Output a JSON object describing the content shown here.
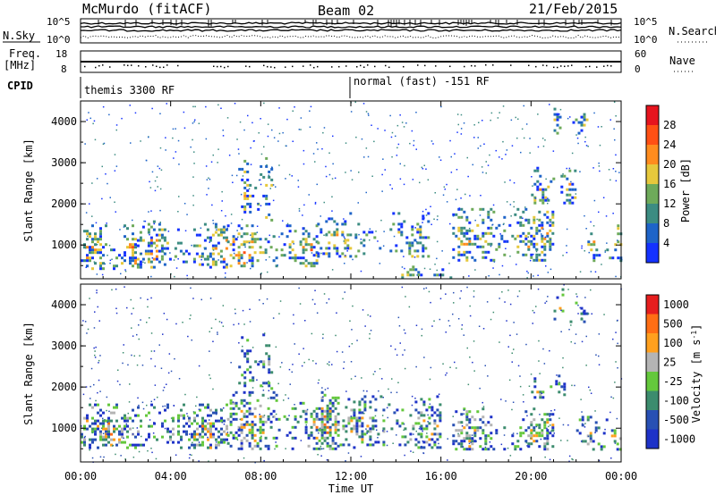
{
  "header": {
    "station": "McMurdo (fitACF)",
    "beam": "Beam 02",
    "date": "21/Feb/2015"
  },
  "top_panels": {
    "nsky_label": "N.Sky",
    "nsearch_label": "N.Search",
    "freq_label_1": "Freq.",
    "freq_label_2": "[MHz]",
    "nave_label": "Nave",
    "cpid_label": "CPID",
    "noise_ticks_left": [
      "10^5",
      "10^0"
    ],
    "noise_ticks_right": [
      "10^5",
      "10^0"
    ],
    "freq_ticks": [
      "18",
      "8"
    ],
    "nave_ticks": [
      "60",
      "0"
    ],
    "cpid_segments": [
      {
        "name": "themis 3300 RF",
        "start_hour": 0,
        "end_hour": 12
      },
      {
        "name": "normal (fast) -151 RF",
        "start_hour": 12,
        "end_hour": 24
      }
    ]
  },
  "chart_data": [
    {
      "type": "heatmap",
      "title": "",
      "ylabel": "Slant Range [km]",
      "xlabel": "",
      "xlim": [
        0,
        24
      ],
      "ylim": [
        180,
        4500
      ],
      "yticks": [
        "1000",
        "2000",
        "3000",
        "4000"
      ],
      "colorbar": {
        "label": "Power [dB]",
        "range": [
          0,
          32
        ],
        "ticks": [
          "4",
          "8",
          "12",
          "16",
          "20",
          "24",
          "28"
        ],
        "colors": [
          "#1432ff",
          "#1e64c8",
          "#3c8c82",
          "#6eaa5a",
          "#e6c83c",
          "#ff8c1e",
          "#ff5014",
          "#e6141e"
        ]
      },
      "clusters": [
        {
          "start_hour": 0.0,
          "end_hour": 2.5,
          "range_lo": 400,
          "range_hi": 1500,
          "level": 0.55
        },
        {
          "start_hour": 2.5,
          "end_hour": 6.5,
          "range_lo": 450,
          "range_hi": 1600,
          "level": 0.5
        },
        {
          "start_hour": 6.5,
          "end_hour": 10.5,
          "range_lo": 500,
          "range_hi": 1500,
          "level": 0.55
        },
        {
          "start_hour": 7.0,
          "end_hour": 8.5,
          "range_lo": 1600,
          "range_hi": 3200,
          "level": 0.35
        },
        {
          "start_hour": 10.5,
          "end_hour": 15.5,
          "range_lo": 700,
          "range_hi": 1800,
          "level": 0.35
        },
        {
          "start_hour": 14.0,
          "end_hour": 16.5,
          "range_lo": 200,
          "range_hi": 500,
          "level": 0.3
        },
        {
          "start_hour": 16.5,
          "end_hour": 21.0,
          "range_lo": 600,
          "range_hi": 1900,
          "level": 0.5
        },
        {
          "start_hour": 20.0,
          "end_hour": 22.0,
          "range_lo": 2000,
          "range_hi": 2900,
          "level": 0.4
        },
        {
          "start_hour": 21.0,
          "end_hour": 22.5,
          "range_lo": 3700,
          "range_hi": 4400,
          "level": 0.3
        },
        {
          "start_hour": 22.5,
          "end_hour": 24.0,
          "range_lo": 600,
          "range_hi": 1500,
          "level": 0.45
        }
      ]
    },
    {
      "type": "heatmap",
      "title": "",
      "ylabel": "Slant Range [km]",
      "xlabel": "Time UT",
      "xlim": [
        0,
        24
      ],
      "ylim": [
        180,
        4500
      ],
      "xticks": [
        "00:00",
        "04:00",
        "08:00",
        "12:00",
        "16:00",
        "20:00",
        "00:00"
      ],
      "yticks": [
        "1000",
        "2000",
        "3000",
        "4000"
      ],
      "colorbar": {
        "label": "Velocity [m s^-1]",
        "ticks": [
          "1000",
          "500",
          "100",
          "25",
          "-25",
          "-100",
          "-500",
          "-1000"
        ],
        "colors": [
          "#1e32c8",
          "#2850b4",
          "#3c8c6e",
          "#64c83c",
          "#b4b4b4",
          "#ffa01e",
          "#ff6e14",
          "#e61e1e"
        ]
      },
      "clusters": [
        {
          "start_hour": 0.0,
          "end_hour": 6.5,
          "range_lo": 500,
          "range_hi": 1600,
          "level": 0.6
        },
        {
          "start_hour": 6.5,
          "end_hour": 11.5,
          "range_lo": 500,
          "range_hi": 1900,
          "level": 0.6
        },
        {
          "start_hour": 7.0,
          "end_hour": 8.5,
          "range_lo": 1900,
          "range_hi": 3300,
          "level": 0.3
        },
        {
          "start_hour": 11.5,
          "end_hour": 16.0,
          "range_lo": 500,
          "range_hi": 1800,
          "level": 0.45
        },
        {
          "start_hour": 16.5,
          "end_hour": 21.0,
          "range_lo": 500,
          "range_hi": 1500,
          "level": 0.55
        },
        {
          "start_hour": 20.0,
          "end_hour": 21.5,
          "range_lo": 1700,
          "range_hi": 2300,
          "level": 0.35
        },
        {
          "start_hour": 21.0,
          "end_hour": 22.5,
          "range_lo": 3600,
          "range_hi": 4400,
          "level": 0.3
        },
        {
          "start_hour": 22.0,
          "end_hour": 24.0,
          "range_lo": 500,
          "range_hi": 1300,
          "level": 0.45
        }
      ]
    }
  ]
}
